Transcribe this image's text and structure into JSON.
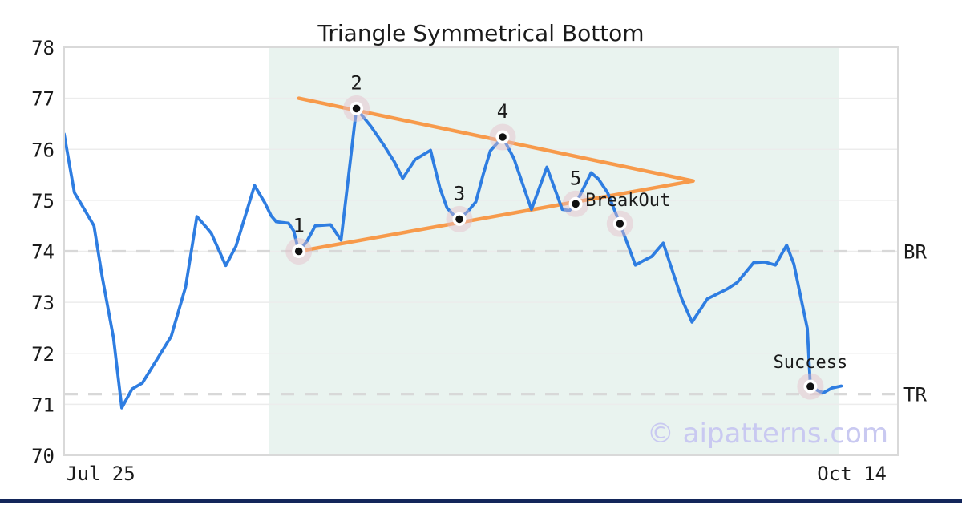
{
  "title": "Triangle Symmetrical Bottom",
  "watermark_text": "© aipatterns.com",
  "colors": {
    "line_blue": "#2e7de1",
    "trendline_orange": "#f79a4b",
    "region_mint": "#e9f3ef",
    "grid_gray": "#ececec",
    "dashed_gray": "#d8d8d8",
    "border_gray": "#d9d9d9",
    "marker_halo": "#e5bec9",
    "marker_dot": "#111111",
    "text_dark": "#1a1a1a",
    "watermark_lavender": "#c9c9f1",
    "footer_navy": "#13265a"
  },
  "chart_data": {
    "type": "line",
    "title": "Triangle Symmetrical Bottom",
    "ylim": [
      70,
      78
    ],
    "y_ticks": [
      70,
      71,
      72,
      73,
      74,
      75,
      76,
      77,
      78
    ],
    "x_range_days": 81,
    "x_tick_labels": [
      {
        "label": "Jul 25",
        "position": "left"
      },
      {
        "label": "Oct 14",
        "position": "right"
      }
    ],
    "grid": true,
    "legend": "none",
    "pattern_region": {
      "from_day": 19.9,
      "to_day": 75.3,
      "color": "#e9f3ef"
    },
    "levels": [
      {
        "label": "BR",
        "value": 74.0,
        "style": "dashed"
      },
      {
        "label": "TR",
        "value": 71.2,
        "style": "dashed"
      }
    ],
    "trendlines": [
      {
        "name": "upper-trendline",
        "color": "#f79a4b",
        "from": [
          22.8,
          77.0
        ],
        "to": [
          61.1,
          75.38
        ]
      },
      {
        "name": "lower-trendline",
        "color": "#f79a4b",
        "from": [
          22.8,
          74.0
        ],
        "to": [
          61.1,
          75.38
        ]
      }
    ],
    "series": [
      {
        "name": "price",
        "color": "#2e7de1",
        "points": [
          [
            0,
            76.3
          ],
          [
            1,
            75.15
          ],
          [
            1.6,
            74.95
          ],
          [
            2.9,
            74.5
          ],
          [
            3.7,
            73.5
          ],
          [
            4.8,
            72.3
          ],
          [
            5.6,
            70.93
          ],
          [
            6.6,
            71.3
          ],
          [
            7.6,
            71.42
          ],
          [
            10.4,
            72.33
          ],
          [
            11.8,
            73.3
          ],
          [
            12.9,
            74.68
          ],
          [
            13.9,
            74.45
          ],
          [
            14.3,
            74.35
          ],
          [
            15.7,
            73.72
          ],
          [
            16.7,
            74.1
          ],
          [
            18.5,
            75.29
          ],
          [
            19.5,
            74.95
          ],
          [
            20.1,
            74.7
          ],
          [
            20.6,
            74.58
          ],
          [
            21.8,
            74.55
          ],
          [
            22.3,
            74.4
          ],
          [
            22.8,
            74.0
          ],
          [
            23.6,
            74.2
          ],
          [
            24.4,
            74.5
          ],
          [
            25.9,
            74.52
          ],
          [
            26.9,
            74.22
          ],
          [
            28.4,
            76.8
          ],
          [
            29.8,
            76.45
          ],
          [
            31,
            76.1
          ],
          [
            32.1,
            75.75
          ],
          [
            32.9,
            75.43
          ],
          [
            34.1,
            75.8
          ],
          [
            35.6,
            75.98
          ],
          [
            36.5,
            75.25
          ],
          [
            37.2,
            74.85
          ],
          [
            37.8,
            74.72
          ],
          [
            38.4,
            74.63
          ],
          [
            39.3,
            74.8
          ],
          [
            40,
            74.97
          ],
          [
            40.7,
            75.5
          ],
          [
            41.4,
            75.97
          ],
          [
            42.6,
            76.24
          ],
          [
            43.7,
            75.82
          ],
          [
            45.4,
            74.82
          ],
          [
            46.9,
            75.65
          ],
          [
            48.4,
            74.82
          ],
          [
            49.1,
            74.8
          ],
          [
            49.7,
            74.93
          ],
          [
            51.2,
            75.54
          ],
          [
            51.9,
            75.42
          ],
          [
            52.8,
            75.15
          ],
          [
            54,
            74.54
          ],
          [
            55,
            74.0
          ],
          [
            55.5,
            73.73
          ],
          [
            56.3,
            73.82
          ],
          [
            57.1,
            73.9
          ],
          [
            58.2,
            74.16
          ],
          [
            60,
            73.07
          ],
          [
            61,
            72.61
          ],
          [
            62.5,
            73.07
          ],
          [
            63.1,
            73.13
          ],
          [
            64.4,
            73.26
          ],
          [
            65.4,
            73.39
          ],
          [
            67,
            73.78
          ],
          [
            68.1,
            73.79
          ],
          [
            69.1,
            73.73
          ],
          [
            70.2,
            74.12
          ],
          [
            70.9,
            73.75
          ],
          [
            71.6,
            73.07
          ],
          [
            72.2,
            72.49
          ],
          [
            72.5,
            71.35
          ],
          [
            73.4,
            71.25
          ],
          [
            73.8,
            71.23
          ],
          [
            74.6,
            71.32
          ],
          [
            75.5,
            71.36
          ]
        ]
      }
    ],
    "pattern_points": [
      {
        "label": "1",
        "day": 22.8,
        "value": 74.0
      },
      {
        "label": "2",
        "day": 28.4,
        "value": 76.8
      },
      {
        "label": "3",
        "day": 38.4,
        "value": 74.63
      },
      {
        "label": "4",
        "day": 42.6,
        "value": 76.24
      },
      {
        "label": "5",
        "day": 49.7,
        "value": 74.93
      }
    ],
    "annotations": [
      {
        "label": "BreakOut",
        "day": 54.0,
        "value": 74.54,
        "anchor": "start",
        "label_offset": [
          -43,
          -22
        ]
      },
      {
        "label": "Success",
        "day": 72.5,
        "value": 71.35,
        "anchor": "middle",
        "label_offset": [
          0,
          -23
        ]
      }
    ]
  }
}
